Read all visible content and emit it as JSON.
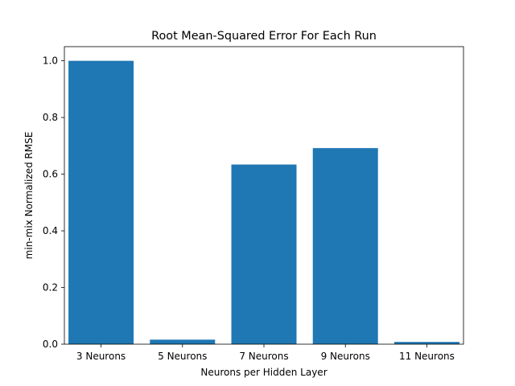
{
  "chart_data": {
    "type": "bar",
    "title": "Root Mean-Squared Error For Each Run",
    "xlabel": "Neurons per Hidden Layer",
    "ylabel": "min-mix Normalized RMSE",
    "categories": [
      "3 Neurons",
      "5 Neurons",
      "7 Neurons",
      "9 Neurons",
      "11 Neurons"
    ],
    "values": [
      1.0,
      0.016,
      0.634,
      0.692,
      0.008
    ],
    "ylim": [
      0,
      1.05
    ],
    "yticks": [
      "0.0",
      "0.2",
      "0.4",
      "0.6",
      "0.8",
      "1.0"
    ],
    "bar_color": "#1f77b4",
    "grid": false
  }
}
